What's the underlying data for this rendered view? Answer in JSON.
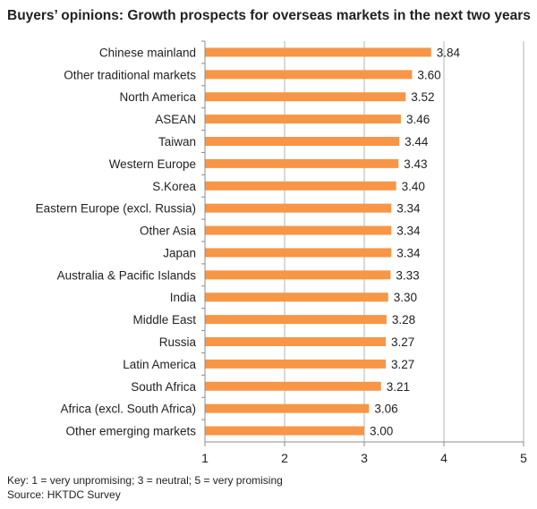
{
  "title": "Buyers’ opinions: Growth prospects for overseas markets in the next two years",
  "footnotes": {
    "key": "Key: 1 = very unpromising; 3 = neutral; 5 = very promising",
    "source": "Source: HKTDC Survey"
  },
  "colors": {
    "bar": "#F79646",
    "grid": "#B3B3B3",
    "axis": "#8C8C8C"
  },
  "chart_data": {
    "type": "bar",
    "orientation": "horizontal",
    "categories": [
      "Chinese mainland",
      "Other traditional markets",
      "North America",
      "ASEAN",
      "Taiwan",
      "Western Europe",
      "S.Korea",
      "Eastern Europe (excl. Russia)",
      "Other Asia",
      "Japan",
      "Australia & Pacific Islands",
      "India",
      "Middle East",
      "Russia",
      "Latin America",
      "South Africa",
      "Africa (excl. South Africa)",
      "Other emerging markets"
    ],
    "values": [
      3.84,
      3.6,
      3.52,
      3.46,
      3.44,
      3.43,
      3.4,
      3.34,
      3.34,
      3.34,
      3.33,
      3.3,
      3.28,
      3.27,
      3.27,
      3.21,
      3.06,
      3.0
    ],
    "value_labels": [
      "3.84",
      "3.60",
      "3.52",
      "3.46",
      "3.44",
      "3.43",
      "3.40",
      "3.34",
      "3.34",
      "3.34",
      "3.33",
      "3.30",
      "3.28",
      "3.27",
      "3.27",
      "3.21",
      "3.06",
      "3.00"
    ],
    "xlim": [
      1,
      5
    ],
    "xticks": [
      "1",
      "2",
      "3",
      "4",
      "5"
    ],
    "grid": "vertical",
    "legend": "none",
    "xlabel": "",
    "ylabel": ""
  }
}
